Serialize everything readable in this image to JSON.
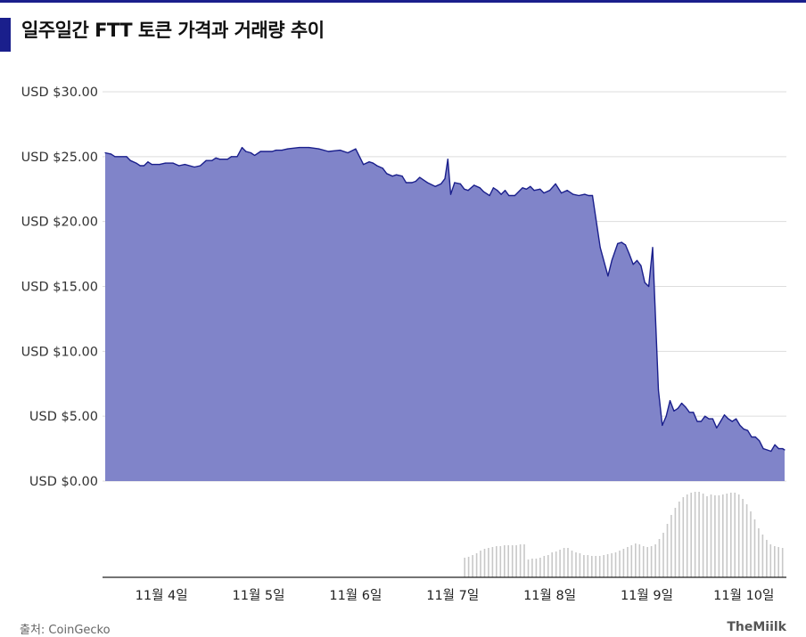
{
  "title": "일주일간 FTT 토큰 가격과 거래량 추이",
  "source": "출처: CoinGecko",
  "logo": "TheMiilk",
  "colors": {
    "accent": "#1a1f8c",
    "area_fill": "#8084c9",
    "line": "#1a1f8c",
    "volume": "#c8c8c8",
    "grid": "#dddddd"
  },
  "chart_data": {
    "type": "area",
    "y_tick_labels": [
      "USD $30.00",
      "USD $25.00",
      "USD $20.00",
      "USD $15.00",
      "USD $10.00",
      "USD $5.00",
      "USD $0.00"
    ],
    "y_ticks": [
      30,
      25,
      20,
      15,
      10,
      5,
      0
    ],
    "ylim": [
      0,
      30
    ],
    "x_tick_labels": [
      "11월 4일",
      "11월 5일",
      "11월 6일",
      "11월 7일",
      "11월 8일",
      "11월 9일",
      "11월 10일"
    ],
    "x_ticks": [
      0.58,
      1.58,
      2.58,
      3.58,
      4.58,
      5.58,
      6.58
    ],
    "xlim": [
      0,
      7.0
    ],
    "series": [
      {
        "values": [
          [
            0.0,
            25.3
          ],
          [
            0.06,
            25.2
          ],
          [
            0.1,
            25.0
          ],
          [
            0.22,
            25.0
          ],
          [
            0.26,
            24.7
          ],
          [
            0.32,
            24.5
          ],
          [
            0.36,
            24.3
          ],
          [
            0.4,
            24.3
          ],
          [
            0.44,
            24.6
          ],
          [
            0.48,
            24.4
          ],
          [
            0.56,
            24.4
          ],
          [
            0.62,
            24.5
          ],
          [
            0.7,
            24.5
          ],
          [
            0.76,
            24.3
          ],
          [
            0.82,
            24.4
          ],
          [
            0.92,
            24.2
          ],
          [
            0.98,
            24.3
          ],
          [
            1.04,
            24.7
          ],
          [
            1.1,
            24.7
          ],
          [
            1.14,
            24.9
          ],
          [
            1.18,
            24.8
          ],
          [
            1.26,
            24.8
          ],
          [
            1.3,
            25.0
          ],
          [
            1.36,
            25.0
          ],
          [
            1.41,
            25.7
          ],
          [
            1.45,
            25.4
          ],
          [
            1.5,
            25.3
          ],
          [
            1.54,
            25.1
          ],
          [
            1.6,
            25.4
          ],
          [
            1.72,
            25.4
          ],
          [
            1.76,
            25.5
          ],
          [
            1.82,
            25.5
          ],
          [
            1.88,
            25.6
          ],
          [
            2.0,
            25.7
          ],
          [
            2.1,
            25.7
          ],
          [
            2.2,
            25.6
          ],
          [
            2.3,
            25.4
          ],
          [
            2.42,
            25.5
          ],
          [
            2.5,
            25.3
          ],
          [
            2.58,
            25.6
          ],
          [
            2.66,
            24.4
          ],
          [
            2.72,
            24.6
          ],
          [
            2.76,
            24.5
          ],
          [
            2.8,
            24.3
          ],
          [
            2.86,
            24.1
          ],
          [
            2.9,
            23.7
          ],
          [
            2.96,
            23.5
          ],
          [
            3.0,
            23.6
          ],
          [
            3.06,
            23.5
          ],
          [
            3.1,
            23.0
          ],
          [
            3.16,
            23.0
          ],
          [
            3.2,
            23.1
          ],
          [
            3.24,
            23.4
          ],
          [
            3.28,
            23.2
          ],
          [
            3.32,
            23.0
          ],
          [
            3.4,
            22.7
          ],
          [
            3.46,
            22.9
          ],
          [
            3.5,
            23.3
          ],
          [
            3.53,
            24.8
          ],
          [
            3.56,
            22.1
          ],
          [
            3.6,
            23.0
          ],
          [
            3.66,
            22.9
          ],
          [
            3.7,
            22.5
          ],
          [
            3.74,
            22.4
          ],
          [
            3.8,
            22.8
          ],
          [
            3.86,
            22.6
          ],
          [
            3.9,
            22.3
          ],
          [
            3.96,
            22.0
          ],
          [
            4.0,
            22.6
          ],
          [
            4.04,
            22.4
          ],
          [
            4.08,
            22.1
          ],
          [
            4.12,
            22.4
          ],
          [
            4.16,
            22.0
          ],
          [
            4.22,
            22.0
          ],
          [
            4.3,
            22.6
          ],
          [
            4.34,
            22.5
          ],
          [
            4.38,
            22.7
          ],
          [
            4.42,
            22.4
          ],
          [
            4.48,
            22.5
          ],
          [
            4.52,
            22.2
          ],
          [
            4.58,
            22.4
          ],
          [
            4.64,
            22.9
          ],
          [
            4.7,
            22.2
          ],
          [
            4.76,
            22.4
          ],
          [
            4.82,
            22.1
          ],
          [
            4.88,
            22.0
          ],
          [
            4.94,
            22.1
          ],
          [
            4.98,
            22.0
          ],
          [
            5.02,
            22.0
          ],
          [
            5.1,
            18.0
          ],
          [
            5.18,
            15.8
          ],
          [
            5.22,
            17.0
          ],
          [
            5.28,
            18.3
          ],
          [
            5.32,
            18.4
          ],
          [
            5.36,
            18.2
          ],
          [
            5.4,
            17.5
          ],
          [
            5.44,
            16.7
          ],
          [
            5.48,
            17.0
          ],
          [
            5.52,
            16.6
          ],
          [
            5.56,
            15.3
          ],
          [
            5.6,
            15.0
          ],
          [
            5.64,
            18.0
          ],
          [
            5.7,
            7.0
          ],
          [
            5.74,
            4.3
          ],
          [
            5.78,
            5.0
          ],
          [
            5.82,
            6.2
          ],
          [
            5.86,
            5.4
          ],
          [
            5.9,
            5.6
          ],
          [
            5.94,
            6.0
          ],
          [
            5.98,
            5.7
          ],
          [
            6.02,
            5.3
          ],
          [
            6.06,
            5.3
          ],
          [
            6.1,
            4.6
          ],
          [
            6.14,
            4.6
          ],
          [
            6.18,
            5.0
          ],
          [
            6.22,
            4.8
          ],
          [
            6.26,
            4.8
          ],
          [
            6.3,
            4.1
          ],
          [
            6.34,
            4.6
          ],
          [
            6.38,
            5.1
          ],
          [
            6.42,
            4.8
          ],
          [
            6.46,
            4.6
          ],
          [
            6.5,
            4.8
          ],
          [
            6.54,
            4.3
          ],
          [
            6.58,
            4.0
          ],
          [
            6.62,
            3.9
          ],
          [
            6.66,
            3.4
          ],
          [
            6.7,
            3.4
          ],
          [
            6.74,
            3.1
          ],
          [
            6.78,
            2.5
          ],
          [
            6.82,
            2.4
          ],
          [
            6.86,
            2.3
          ],
          [
            6.9,
            2.8
          ],
          [
            6.94,
            2.5
          ],
          [
            6.98,
            2.5
          ],
          [
            7.0,
            2.4
          ]
        ]
      }
    ],
    "volume_bars": [
      0,
      0,
      0,
      0,
      0,
      0,
      0,
      0,
      0,
      0,
      0,
      0,
      0,
      0,
      0,
      0,
      0,
      0,
      0,
      0,
      0,
      0,
      0,
      0,
      0,
      0,
      0,
      0,
      0,
      0,
      0,
      0,
      0,
      0,
      0,
      0,
      0,
      0,
      0,
      0,
      0,
      0,
      0,
      0,
      0,
      0,
      0,
      0,
      0,
      0,
      0,
      0,
      0,
      0,
      0,
      0,
      0,
      0,
      0,
      0,
      0,
      0,
      0,
      0,
      0,
      0,
      0,
      0,
      0,
      0,
      0,
      0,
      0,
      0,
      0,
      0,
      0,
      0,
      0,
      0,
      0,
      0,
      0,
      0,
      0,
      0,
      0,
      0,
      0,
      0,
      0.22,
      0.23,
      0.25,
      0.27,
      0.3,
      0.32,
      0.33,
      0.34,
      0.35,
      0.35,
      0.36,
      0.36,
      0.36,
      0.36,
      0.37,
      0.37,
      0.2,
      0.21,
      0.21,
      0.22,
      0.24,
      0.25,
      0.28,
      0.29,
      0.31,
      0.33,
      0.33,
      0.3,
      0.28,
      0.27,
      0.25,
      0.25,
      0.24,
      0.24,
      0.24,
      0.25,
      0.26,
      0.27,
      0.28,
      0.3,
      0.32,
      0.34,
      0.36,
      0.38,
      0.37,
      0.35,
      0.34,
      0.35,
      0.37,
      0.43,
      0.5,
      0.6,
      0.7,
      0.78,
      0.85,
      0.9,
      0.93,
      0.95,
      0.96,
      0.96,
      0.94,
      0.91,
      0.93,
      0.92,
      0.92,
      0.93,
      0.94,
      0.95,
      0.95,
      0.93,
      0.88,
      0.82,
      0.74,
      0.65,
      0.55,
      0.48,
      0.42,
      0.37,
      0.35,
      0.34,
      0.33
    ]
  }
}
